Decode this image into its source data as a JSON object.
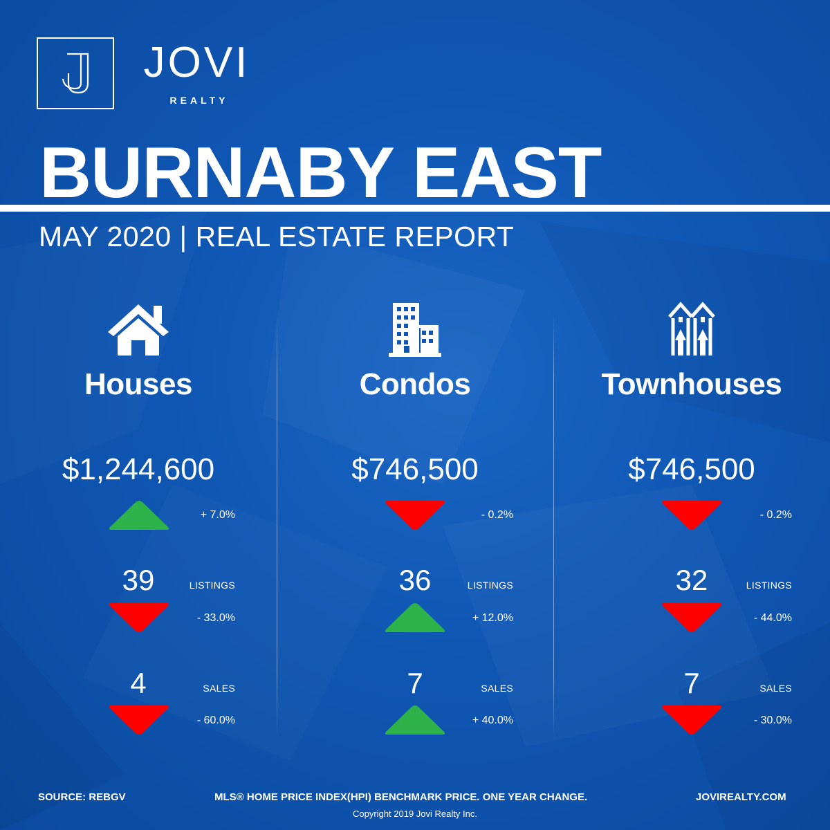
{
  "brand": {
    "name": "JOVI",
    "sub": "REALTY",
    "monogram": "J"
  },
  "title": "BURNABY EAST",
  "subtitle": "MAY 2020 | REAL ESTATE REPORT",
  "colors": {
    "background": "#0f56b3",
    "up": "#2db34a",
    "down": "#ff0000",
    "text": "#ffffff"
  },
  "columns": [
    {
      "icon": "house-icon",
      "category": "Houses",
      "price": "$1,244,600",
      "price_change": {
        "direction": "up",
        "text": "+ 7.0%"
      },
      "listings": {
        "value": "39",
        "label": "LISTINGS",
        "direction": "down",
        "change": "- 33.0%"
      },
      "sales": {
        "value": "4",
        "label": "SALES",
        "direction": "down",
        "change": "- 60.0%"
      }
    },
    {
      "icon": "condo-building-icon",
      "category": "Condos",
      "price": "$746,500",
      "price_change": {
        "direction": "down",
        "text": "- 0.2%"
      },
      "listings": {
        "value": "36",
        "label": "LISTINGS",
        "direction": "up",
        "change": "+ 12.0%"
      },
      "sales": {
        "value": "7",
        "label": "SALES",
        "direction": "up",
        "change": "+ 40.0%"
      }
    },
    {
      "icon": "townhouse-icon",
      "category": "Townhouses",
      "price": "$746,500",
      "price_change": {
        "direction": "down",
        "text": "- 0.2%"
      },
      "listings": {
        "value": "32",
        "label": "LISTINGS",
        "direction": "down",
        "change": "- 44.0%"
      },
      "sales": {
        "value": "7",
        "label": "SALES",
        "direction": "down",
        "change": "- 30.0%"
      }
    }
  ],
  "footer": {
    "source": "SOURCE:  REBGV",
    "note": "MLS® HOME PRICE INDEX(HPI) BENCHMARK PRICE. ONE YEAR CHANGE.",
    "website": "JOVIREALTY.COM",
    "copyright": "Copyright 2019 Jovi Realty Inc."
  }
}
